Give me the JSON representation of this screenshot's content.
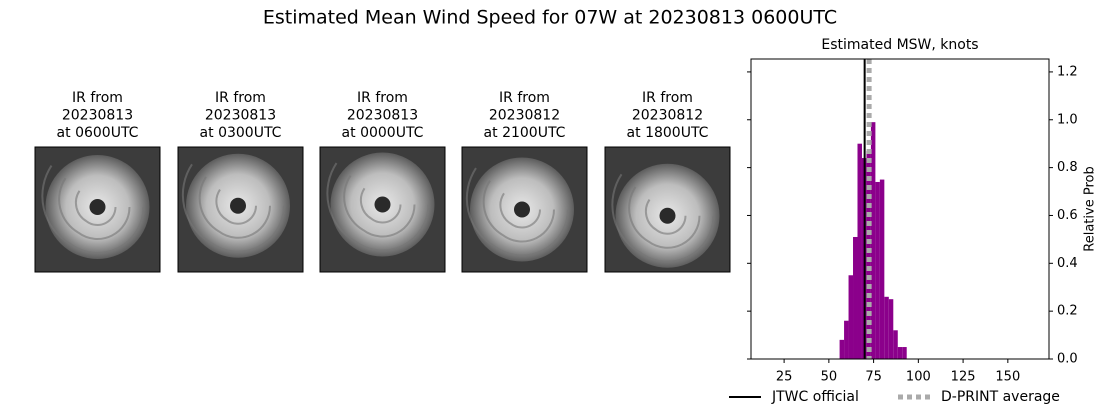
{
  "title": "Estimated Mean Wind Speed for 07W at 20230813 0600UTC",
  "panels": [
    {
      "lines": [
        "IR from",
        "20230813",
        "at 0600UTC"
      ]
    },
    {
      "lines": [
        "IR from",
        "20230813",
        "at 0300UTC"
      ]
    },
    {
      "lines": [
        "IR from",
        "20230813",
        "at 0000UTC"
      ]
    },
    {
      "lines": [
        "IR from",
        "20230812",
        "at 2100UTC"
      ]
    },
    {
      "lines": [
        "IR from",
        "20230812",
        "at 1800UTC"
      ]
    }
  ],
  "chart_data": {
    "type": "histogram",
    "title": "Estimated MSW, knots",
    "bins": [
      56,
      58.5,
      61,
      63.5,
      66,
      68.5,
      71,
      73.5,
      76,
      78.5,
      81,
      83.5,
      86,
      88.5,
      91,
      93.5
    ],
    "counts": [
      0.08,
      0.16,
      0.35,
      0.51,
      0.9,
      0.84,
      0.87,
      0.99,
      0.74,
      0.75,
      0.26,
      0.25,
      0.12,
      0.05,
      0.05
    ],
    "color": "#8b008b",
    "xlim": [
      6.5,
      173
    ],
    "ylim": [
      0,
      1.254
    ],
    "xticks": [
      25,
      50,
      75,
      100,
      125,
      150
    ],
    "yticks": [
      {
        "value": 0,
        "label": "0.0"
      },
      0.2,
      0.4,
      0.6,
      0.8,
      {
        "value": 1,
        "label": "1.0"
      },
      1.2
    ],
    "y_axis_side": "right",
    "ylabel": "Relative Prob",
    "vlines": [
      {
        "name": "JTWC official",
        "value": 70,
        "color": "#000000",
        "style": "solid"
      },
      {
        "name": "D-PRINT average",
        "value": 72.5,
        "color": "#aaaaaa",
        "style": "dotted"
      }
    ]
  }
}
